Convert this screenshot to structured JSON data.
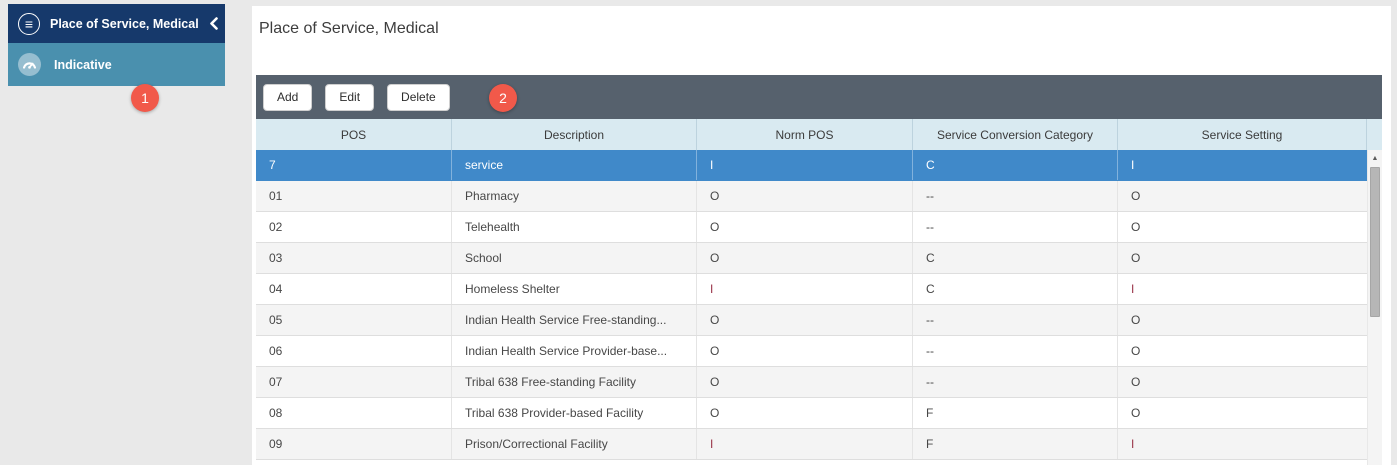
{
  "sidebar": {
    "title": "Place of Service, Medical",
    "menu_icon_glyph": "≡",
    "collapse_icon": "chevron-left-icon",
    "items": [
      {
        "label": "Indicative",
        "icon": "gauge-icon",
        "active": true
      }
    ]
  },
  "badges": [
    {
      "label": "1"
    },
    {
      "label": "2"
    }
  ],
  "main": {
    "title": "Place of Service, Medical",
    "toolbar": {
      "buttons": [
        {
          "label": "Add"
        },
        {
          "label": "Edit"
        },
        {
          "label": "Delete"
        }
      ]
    },
    "table": {
      "columns": [
        "POS",
        "Description",
        "Norm POS",
        "Service Conversion Category",
        "Service Setting"
      ],
      "highlight_value": "I",
      "rows": [
        {
          "pos": "7",
          "description": "service",
          "norm_pos": "I",
          "service_conversion_category": "C",
          "service_setting": "I",
          "selected": true
        },
        {
          "pos": "01",
          "description": "Pharmacy",
          "norm_pos": "O",
          "service_conversion_category": "--",
          "service_setting": "O"
        },
        {
          "pos": "02",
          "description": "Telehealth",
          "norm_pos": "O",
          "service_conversion_category": "--",
          "service_setting": "O"
        },
        {
          "pos": "03",
          "description": "School",
          "norm_pos": "O",
          "service_conversion_category": "C",
          "service_setting": "O"
        },
        {
          "pos": "04",
          "description": "Homeless Shelter",
          "norm_pos": "I",
          "service_conversion_category": "C",
          "service_setting": "I"
        },
        {
          "pos": "05",
          "description": "Indian Health Service Free-standing...",
          "norm_pos": "O",
          "service_conversion_category": "--",
          "service_setting": "O"
        },
        {
          "pos": "06",
          "description": "Indian Health Service Provider-base...",
          "norm_pos": "O",
          "service_conversion_category": "--",
          "service_setting": "O"
        },
        {
          "pos": "07",
          "description": "Tribal 638 Free-standing Facility",
          "norm_pos": "O",
          "service_conversion_category": "--",
          "service_setting": "O"
        },
        {
          "pos": "08",
          "description": "Tribal 638 Provider-based Facility",
          "norm_pos": "O",
          "service_conversion_category": "F",
          "service_setting": "O"
        },
        {
          "pos": "09",
          "description": "Prison/Correctional Facility",
          "norm_pos": "I",
          "service_conversion_category": "F",
          "service_setting": "I"
        }
      ]
    },
    "scrollbar": {
      "up_glyph": "▲"
    }
  },
  "colors": {
    "sidebar_header_bg": "#16396b",
    "sidebar_item_bg": "#4a90ae",
    "toolbar_bg": "#56616d",
    "table_header_bg": "#d9eaf1",
    "selected_row_bg": "#4089c9",
    "alt_row_bg": "#f4f4f4",
    "badge_bg": "#f1594a",
    "highlight_text": "#993247"
  }
}
